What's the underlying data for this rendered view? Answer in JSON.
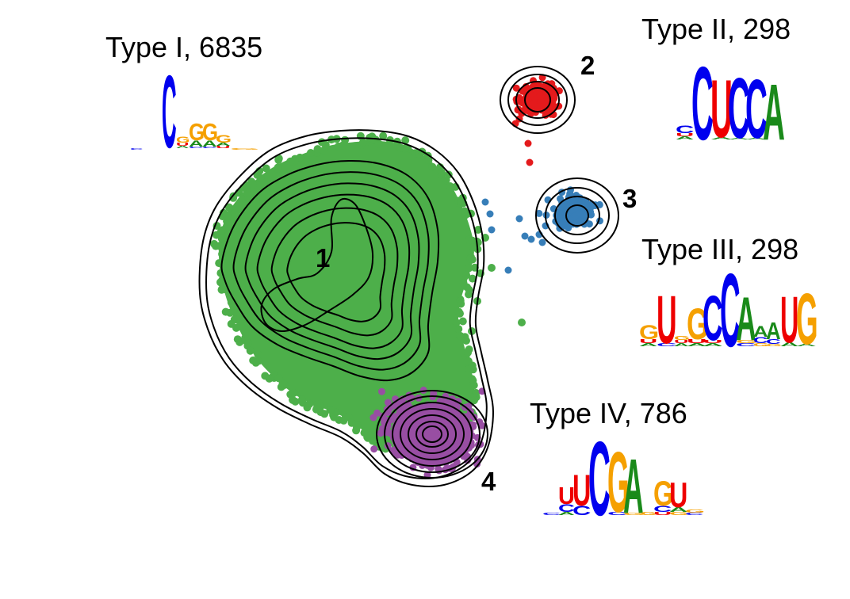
{
  "colors": {
    "type1": "#4daf4a",
    "type2": "#e41a1c",
    "type3": "#377eb8",
    "type4": "#984ea3",
    "contour": "#000000",
    "nucA": "#1a8a1a",
    "nucC": "#0000ee",
    "nucG": "#f5a000",
    "nucU": "#ee0000"
  },
  "chart_data": {
    "type": "scatter",
    "grid": false,
    "axes_visible": false,
    "clusters": [
      {
        "id": "1",
        "label": "1",
        "title": "Type I, 6835",
        "color_key": "type1",
        "motif": "C_GG_"
      },
      {
        "id": "2",
        "label": "2",
        "title": "Type II, 298",
        "color_key": "type2",
        "motif": "_CUCCA"
      },
      {
        "id": "3",
        "label": "3",
        "title": "Type III, 298",
        "color_key": "type3",
        "motif": "_U_GCCA_AUG"
      },
      {
        "id": "4",
        "label": "4",
        "title": "Type IV, 786",
        "color_key": "type4",
        "motif": "UUCGA_GU"
      }
    ]
  }
}
